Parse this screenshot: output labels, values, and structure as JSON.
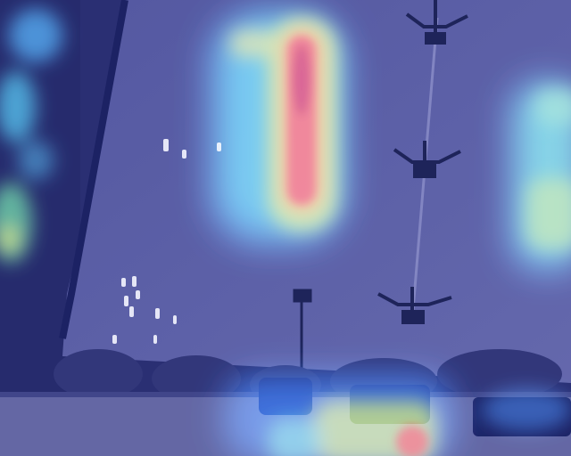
{
  "image": {
    "kind": "aerial photograph with heatmap overlay",
    "overlay_colormap": "jet",
    "base_tint": "#3c3c8c"
  },
  "colors": {
    "ground": "#2a2a5e",
    "field": "#5a5a92",
    "road": "#6a6a96",
    "heat_low": "#2c3ca8",
    "heat_mid_cyan": "#4fd2e6",
    "heat_mid_yellow": "#e6e64a",
    "heat_high": "#e8321e"
  }
}
